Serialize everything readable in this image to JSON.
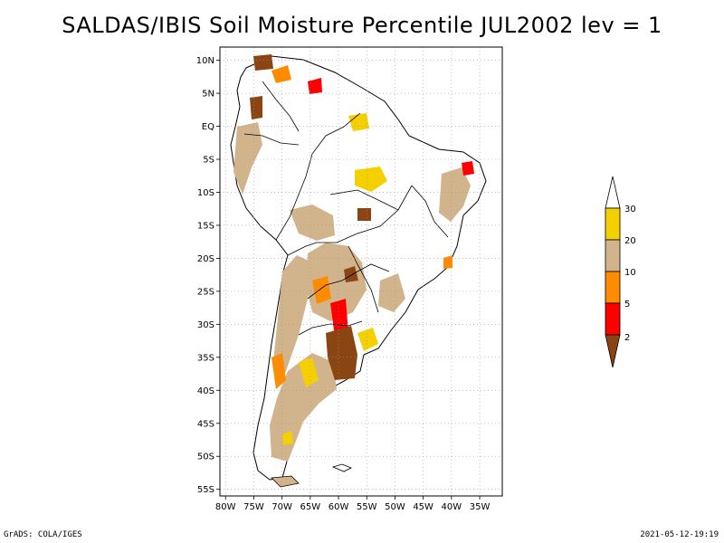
{
  "title": "SALDAS/IBIS Soil Moisture Percentile JUL2002 lev = 1",
  "footer": {
    "left": "GrADS: COLA/IGES",
    "right": "2021-05-12-19:19"
  },
  "map": {
    "lat_labels": [
      "10N",
      "5N",
      "EQ",
      "5S",
      "10S",
      "15S",
      "20S",
      "25S",
      "30S",
      "35S",
      "40S",
      "45S",
      "50S",
      "55S"
    ],
    "lat_values": [
      10,
      5,
      0,
      -5,
      -10,
      -15,
      -20,
      -25,
      -30,
      -35,
      -40,
      -45,
      -50,
      -55
    ],
    "lon_labels": [
      "80W",
      "75W",
      "70W",
      "65W",
      "60W",
      "55W",
      "50W",
      "45W",
      "40W",
      "35W"
    ],
    "lon_values": [
      -80,
      -75,
      -70,
      -65,
      -60,
      -55,
      -50,
      -45,
      -40,
      -35
    ],
    "lon_range": [
      -81,
      -31
    ],
    "lat_range": [
      12,
      -56
    ]
  },
  "legend": {
    "labels": [
      "30",
      "20",
      "10",
      "5",
      "2"
    ],
    "colors": {
      "above30": "#ffffff",
      "band20_30": "#f5d000",
      "band10_20": "#d2b48c",
      "band5_10": "#ff8c00",
      "band2_5": "#ff0000",
      "below2": "#8b4513"
    }
  }
}
